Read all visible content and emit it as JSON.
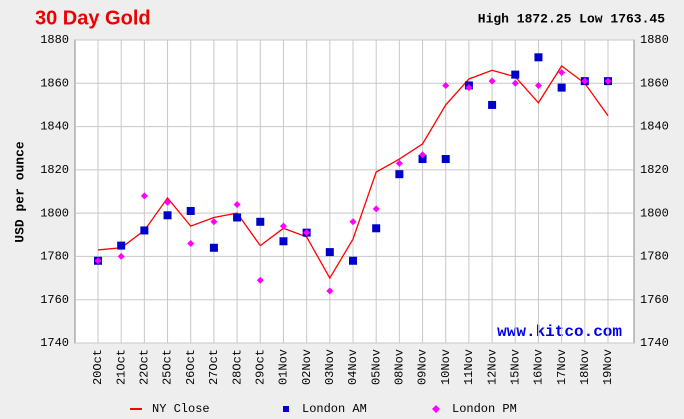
{
  "chart_data": {
    "type": "line",
    "title": "30 Day Gold",
    "subtitle": "High 1872.25 Low 1763.45",
    "y_label": "USD per ounce",
    "watermark": "www.kitco.com",
    "categories": [
      "20Oct",
      "21Oct",
      "22Oct",
      "25Oct",
      "26Oct",
      "27Oct",
      "28Oct",
      "29Oct",
      "01Nov",
      "02Nov",
      "03Nov",
      "04Nov",
      "05Nov",
      "08Nov",
      "09Nov",
      "10Nov",
      "11Nov",
      "12Nov",
      "15Nov",
      "16Nov",
      "17Nov",
      "18Nov",
      "19Nov"
    ],
    "series": [
      {
        "name": "NY Close",
        "color": "#ff0000",
        "marker": "line",
        "values": [
          1783,
          1784,
          1792,
          1807,
          1794,
          1798,
          1800,
          1785,
          1793,
          1789,
          1770,
          1788,
          1819,
          1825,
          1832,
          1850,
          1862,
          1866,
          1863,
          1851,
          1868,
          1860,
          1845
        ]
      },
      {
        "name": "London AM",
        "color": "#0000cc",
        "marker": "square",
        "values": [
          1778,
          1785,
          1792,
          1799,
          1801,
          1784,
          1798,
          1796,
          1787,
          1791,
          1782,
          1778,
          1793,
          1818,
          1825,
          1825,
          1859,
          1850,
          1864,
          1872,
          1858,
          1861,
          1861
        ]
      },
      {
        "name": "London PM",
        "color": "#ff00ff",
        "marker": "diamond",
        "values": [
          1778,
          1780,
          1808,
          1805,
          1786,
          1796,
          1804,
          1769,
          1794,
          1791,
          1764,
          1796,
          1802,
          1823,
          1827,
          1859,
          1858,
          1861,
          1860,
          1859,
          1865,
          1861,
          1861
        ]
      }
    ],
    "ylim": [
      1740,
      1880
    ],
    "yticks": [
      1740,
      1760,
      1780,
      1800,
      1820,
      1840,
      1860,
      1880
    ],
    "grid": true
  }
}
